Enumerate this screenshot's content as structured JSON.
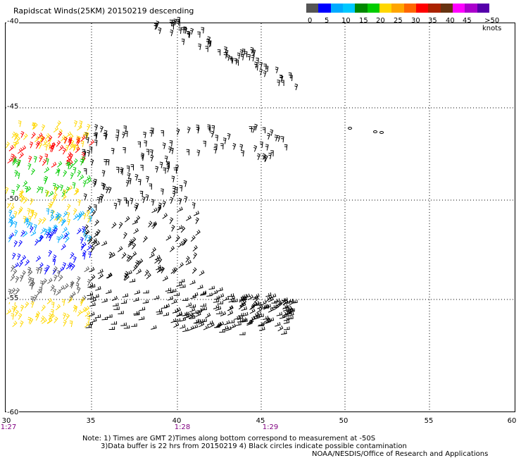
{
  "title": "Rapidscat Winds(25KM) 20150219 descending",
  "legend": {
    "colors": [
      "#555555",
      "#0000ff",
      "#00aaff",
      "#00c8ff",
      "#008800",
      "#00cc00",
      "#ffd700",
      "#ffa500",
      "#ff6600",
      "#ff0000",
      "#aa2200",
      "#663311",
      "#ff00ff",
      "#aa00cc",
      "#5500aa"
    ],
    "labels": [
      "0",
      "5",
      "10",
      "15",
      "20",
      "25",
      "30",
      "35",
      "40",
      "45",
      ">50 knots"
    ]
  },
  "axes": {
    "lat_labels": [
      "-40",
      "-45",
      "-50",
      "-55",
      "-60"
    ],
    "lon_labels": [
      "30",
      "35",
      "40",
      "45",
      "50",
      "55",
      "60"
    ],
    "time_labels": [
      "1:27",
      "1:28",
      "1:29"
    ]
  },
  "notes": {
    "line1": "Note: 1) Times are GMT 2)Times along bottom correspond to measurement at -50S",
    "line2": "3)Data buffer is 22 hrs from 20150219 4) Black circles indicate possible contamination",
    "line3": "NOAA/NESDIS/Office of Research and Applications"
  }
}
